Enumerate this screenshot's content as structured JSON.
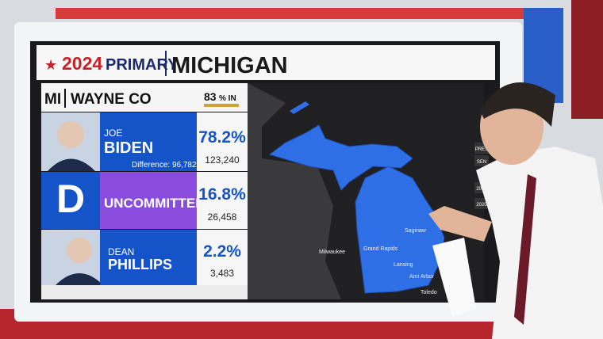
{
  "header": {
    "year": "2024",
    "label": "PRIMARY",
    "state": "MICHIGAN"
  },
  "county": {
    "state_abbr": "MI",
    "name": "WAYNE CO",
    "reporting_value": "83",
    "reporting_unit": "% IN"
  },
  "candidates": [
    {
      "first": "JOE",
      "last": "BIDEN",
      "percent": "78.2%",
      "votes": "123,240",
      "note": "Difference: 96,782"
    },
    {
      "badge": "D",
      "last": "UNCOMMITTED",
      "percent": "16.8%",
      "votes": "26,458"
    },
    {
      "first": "DEAN",
      "last": "PHILLIPS",
      "percent": "2.2%",
      "votes": "3,483"
    }
  ],
  "map": {
    "cities": [
      "Milwaukee",
      "Grand Rapids",
      "Saginaw",
      "Lansing",
      "Ann Arbor",
      "Toledo"
    ]
  },
  "side_menu": [
    "PRES",
    "SEN",
    "2024",
    "2020"
  ]
}
